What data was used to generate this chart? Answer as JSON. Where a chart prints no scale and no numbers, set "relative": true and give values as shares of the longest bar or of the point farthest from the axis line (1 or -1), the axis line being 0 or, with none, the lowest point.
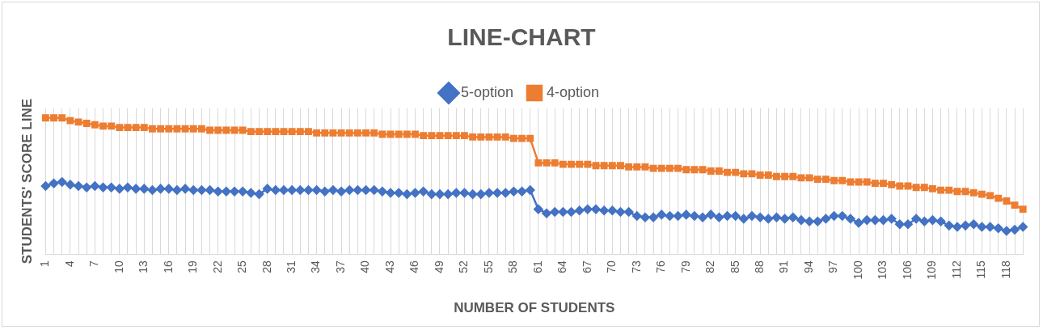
{
  "chart_data": {
    "type": "line",
    "title": "LINE-CHART",
    "xlabel": "NUMBER OF STUDENTS",
    "ylabel": "STUDENTS' SCORE LINE",
    "relative": true,
    "legend": "top",
    "grid": "x",
    "line_style": "solid",
    "categories": [
      "1",
      null,
      null,
      "4",
      null,
      null,
      "7",
      null,
      null,
      "10",
      null,
      null,
      "13",
      null,
      null,
      "16",
      null,
      null,
      "19",
      null,
      null,
      "22",
      null,
      null,
      "25",
      null,
      null,
      "28",
      null,
      null,
      "31",
      null,
      null,
      "34",
      null,
      null,
      "37",
      null,
      null,
      "40",
      null,
      null,
      "43",
      null,
      null,
      "46",
      null,
      null,
      "49",
      null,
      null,
      "52",
      null,
      null,
      "55",
      null,
      null,
      "58",
      null,
      null,
      "61",
      null,
      null,
      "64",
      null,
      null,
      "67",
      null,
      null,
      "70",
      null,
      null,
      "73",
      null,
      null,
      "76",
      null,
      null,
      "79",
      null,
      null,
      "82",
      null,
      null,
      "85",
      null,
      null,
      "88",
      null,
      null,
      "91",
      null,
      null,
      "94",
      null,
      null,
      "97",
      null,
      null,
      "100",
      null,
      null,
      "103",
      null,
      null,
      "106",
      null,
      null,
      "109",
      null,
      null,
      "112",
      null,
      null,
      "115",
      null,
      null,
      "118",
      null,
      null
    ],
    "series": [
      {
        "name": "5-option",
        "color": "#4472c4",
        "marker": "diamond",
        "values": [
          0.5,
          0.52,
          0.53,
          0.51,
          0.5,
          0.49,
          0.5,
          0.49,
          0.49,
          0.48,
          0.49,
          0.48,
          0.48,
          0.47,
          0.48,
          0.48,
          0.47,
          0.48,
          0.47,
          0.47,
          0.47,
          0.46,
          0.46,
          0.46,
          0.46,
          0.45,
          0.44,
          0.48,
          0.47,
          0.47,
          0.47,
          0.47,
          0.47,
          0.47,
          0.46,
          0.47,
          0.46,
          0.47,
          0.47,
          0.47,
          0.47,
          0.46,
          0.45,
          0.45,
          0.44,
          0.45,
          0.46,
          0.44,
          0.44,
          0.44,
          0.45,
          0.45,
          0.44,
          0.44,
          0.45,
          0.45,
          0.45,
          0.46,
          0.46,
          0.47,
          0.33,
          0.3,
          0.31,
          0.31,
          0.31,
          0.32,
          0.33,
          0.33,
          0.32,
          0.32,
          0.31,
          0.31,
          0.28,
          0.27,
          0.27,
          0.29,
          0.28,
          0.28,
          0.29,
          0.28,
          0.27,
          0.29,
          0.27,
          0.28,
          0.28,
          0.26,
          0.28,
          0.27,
          0.26,
          0.27,
          0.26,
          0.27,
          0.25,
          0.24,
          0.24,
          0.26,
          0.28,
          0.28,
          0.26,
          0.23,
          0.25,
          0.25,
          0.25,
          0.26,
          0.22,
          0.22,
          0.26,
          0.24,
          0.25,
          0.24,
          0.21,
          0.2,
          0.21,
          0.22,
          0.2,
          0.2,
          0.19,
          0.17,
          0.18,
          0.2
        ]
      },
      {
        "name": "4-option",
        "color": "#ed7d31",
        "marker": "square",
        "values": [
          1,
          1,
          1,
          0.98,
          0.97,
          0.96,
          0.95,
          0.94,
          0.94,
          0.93,
          0.93,
          0.93,
          0.93,
          0.92,
          0.92,
          0.92,
          0.92,
          0.92,
          0.92,
          0.92,
          0.91,
          0.91,
          0.91,
          0.91,
          0.91,
          0.9,
          0.9,
          0.9,
          0.9,
          0.9,
          0.9,
          0.9,
          0.9,
          0.89,
          0.89,
          0.89,
          0.89,
          0.89,
          0.89,
          0.89,
          0.89,
          0.88,
          0.88,
          0.88,
          0.88,
          0.88,
          0.87,
          0.87,
          0.87,
          0.87,
          0.87,
          0.87,
          0.86,
          0.86,
          0.86,
          0.86,
          0.86,
          0.85,
          0.85,
          0.85,
          0.67,
          0.67,
          0.67,
          0.66,
          0.66,
          0.66,
          0.66,
          0.65,
          0.65,
          0.65,
          0.65,
          0.64,
          0.64,
          0.64,
          0.63,
          0.63,
          0.63,
          0.63,
          0.62,
          0.62,
          0.62,
          0.61,
          0.61,
          0.6,
          0.6,
          0.59,
          0.59,
          0.58,
          0.58,
          0.57,
          0.57,
          0.57,
          0.56,
          0.56,
          0.55,
          0.55,
          0.54,
          0.54,
          0.53,
          0.53,
          0.53,
          0.52,
          0.52,
          0.51,
          0.5,
          0.5,
          0.49,
          0.49,
          0.48,
          0.47,
          0.47,
          0.46,
          0.46,
          0.45,
          0.44,
          0.43,
          0.41,
          0.39,
          0.36,
          0.33
        ]
      }
    ]
  }
}
